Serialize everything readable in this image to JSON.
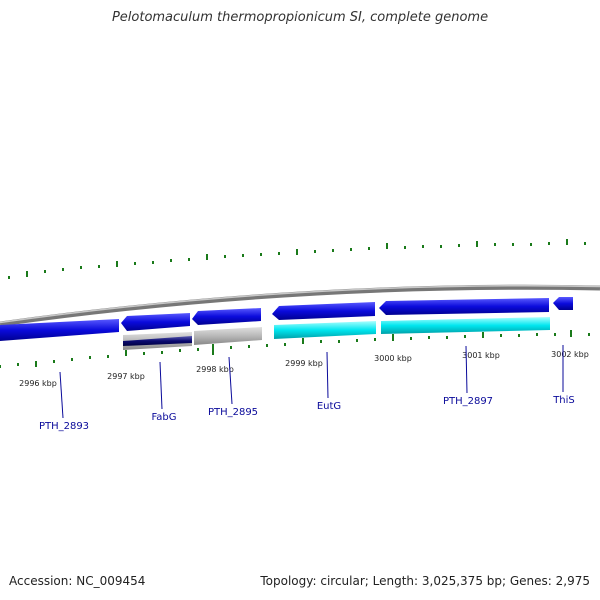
{
  "title": "Pelotomaculum thermopropionicum SI, complete genome",
  "footer": {
    "accession": "Accession: NC_009454",
    "summary": "Topology: circular; Length: 3,025,375 bp; Genes: 2,975"
  },
  "colors": {
    "backbone": "#888888",
    "gene": "#0b0bdc",
    "gene_gray": "#b5b5b5",
    "gene_cyan": "#00e6ef",
    "gene_navy": "#0a0a70",
    "tick": "#1a7a1a",
    "label": "#0a0a9a"
  },
  "ticks": [
    "2996 kbp",
    "2997 kbp",
    "2998 kbp",
    "2999 kbp",
    "3000 kbp",
    "3001 kbp",
    "3002 kbp"
  ],
  "genes": [
    "PTH_2893",
    "FabG",
    "PTH_2895",
    "EutG",
    "PTH_2897",
    "ThiS"
  ]
}
